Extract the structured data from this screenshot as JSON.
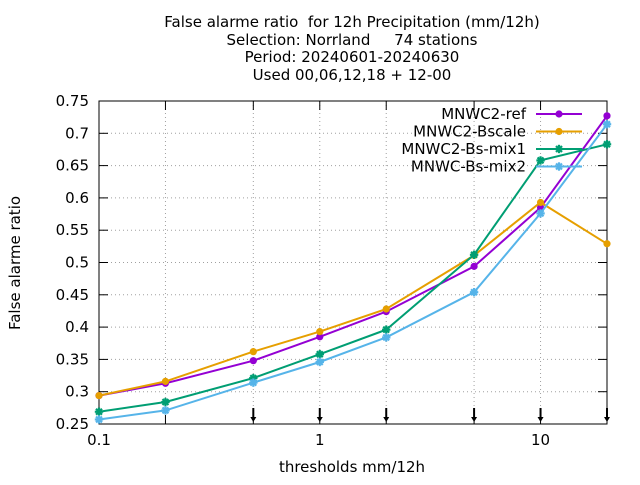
{
  "chart_data": {
    "type": "line",
    "title": [
      "False alarme ratio  for 12h Precipitation (mm/12h)",
      "Selection: Norrland     74 stations",
      "Period: 20240601-20240630",
      "Used 00,06,12,18 + 12-00"
    ],
    "xlabel": "thresholds mm/12h",
    "ylabel": "False alarme ratio",
    "x_scale": "log",
    "xlim": [
      0.1,
      20
    ],
    "ylim": [
      0.25,
      0.75
    ],
    "x_ticks": [
      {
        "value": 0.1,
        "label": "0.1"
      },
      {
        "value": 1,
        "label": "1"
      },
      {
        "value": 10,
        "label": "10"
      }
    ],
    "x_minor_ticks": [
      0.2,
      0.5,
      2,
      5,
      20
    ],
    "y_ticks": [
      {
        "value": 0.25,
        "label": "0.25"
      },
      {
        "value": 0.3,
        "label": "0.3"
      },
      {
        "value": 0.35,
        "label": "0.35"
      },
      {
        "value": 0.4,
        "label": "0.4"
      },
      {
        "value": 0.45,
        "label": "0.45"
      },
      {
        "value": 0.5,
        "label": "0.5"
      },
      {
        "value": 0.55,
        "label": "0.55"
      },
      {
        "value": 0.6,
        "label": "0.6"
      },
      {
        "value": 0.65,
        "label": "0.65"
      },
      {
        "value": 0.7,
        "label": "0.7"
      },
      {
        "value": 0.75,
        "label": "0.75"
      }
    ],
    "grid": true,
    "legend_position": "top-right",
    "sample_markers_x": [
      0.5,
      1,
      2,
      5,
      10,
      20
    ],
    "x": [
      0.1,
      0.2,
      0.5,
      1,
      2,
      5,
      10,
      20
    ],
    "series": [
      {
        "name": "MNWC2-ref",
        "color": "#9400d3",
        "marker": "circle",
        "values": [
          0.294,
          0.313,
          0.348,
          0.385,
          0.424,
          0.494,
          0.585,
          0.727
        ]
      },
      {
        "name": "MNWC2-Bscale",
        "color": "#e69f00",
        "marker": "circle",
        "values": [
          0.294,
          0.316,
          0.362,
          0.393,
          0.428,
          0.511,
          0.593,
          0.529
        ]
      },
      {
        "name": "MNWC2-Bs-mix1",
        "color": "#009e73",
        "marker": "star",
        "values": [
          0.269,
          0.284,
          0.321,
          0.358,
          0.396,
          0.512,
          0.658,
          0.683
        ]
      },
      {
        "name": "MNWC-Bs-mix2",
        "color": "#56b4e9",
        "marker": "star",
        "values": [
          0.257,
          0.271,
          0.314,
          0.346,
          0.384,
          0.454,
          0.576,
          0.714
        ]
      }
    ]
  }
}
